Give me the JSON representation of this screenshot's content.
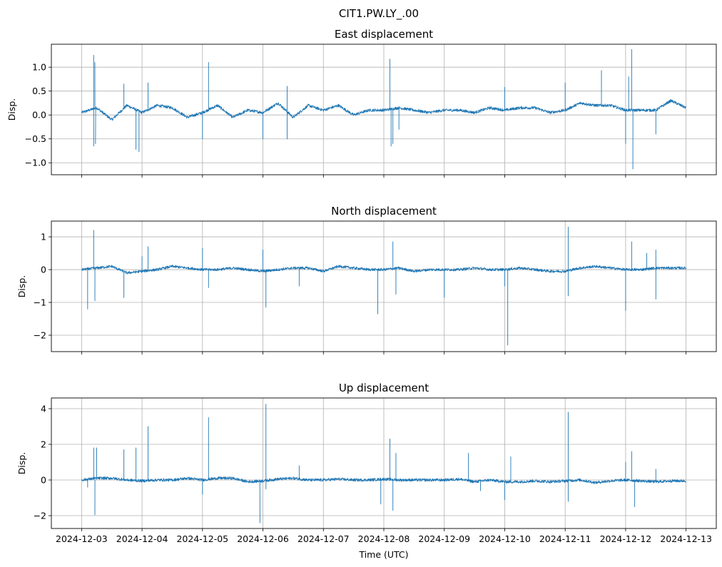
{
  "chart_data": {
    "type": "line",
    "suptitle": "CIT1.PW.LY_.00",
    "xlabel": "Time (UTC)",
    "x_tick_labels": [
      "2024-12-03",
      "2024-12-04",
      "2024-12-05",
      "2024-12-06",
      "2024-12-07",
      "2024-12-08",
      "2024-12-09",
      "2024-12-10",
      "2024-12-11",
      "2024-12-12",
      "2024-12-13"
    ],
    "x_unit": "days since 2024-12-03",
    "xlim": [
      -0.5,
      10.5
    ],
    "line_color": "#1f77b4",
    "grid": true,
    "subplots": [
      {
        "title": "East displacement",
        "ylabel": "Disp.",
        "ylim": [
          -1.25,
          1.48
        ],
        "yticks": [
          -1.0,
          -0.5,
          0.0,
          0.5,
          1.0
        ],
        "ytick_labels": [
          "−1.0",
          "−0.5",
          "0.0",
          "0.5",
          "1.0"
        ],
        "noise": 0.03,
        "baseline_step_days": 0.25,
        "baseline": [
          0.05,
          0.15,
          -0.1,
          0.2,
          0.05,
          0.2,
          0.15,
          -0.05,
          0.05,
          0.2,
          -0.05,
          0.1,
          0.05,
          0.25,
          -0.05,
          0.2,
          0.1,
          0.2,
          0.0,
          0.1,
          0.1,
          0.15,
          0.1,
          0.05,
          0.1,
          0.1,
          0.05,
          0.15,
          0.1,
          0.15,
          0.15,
          0.05,
          0.1,
          0.25,
          0.2,
          0.2,
          0.1,
          0.1,
          0.1,
          0.3,
          0.15
        ],
        "spikes": [
          [
            0.2,
            1.25
          ],
          [
            0.2,
            -0.65
          ],
          [
            0.22,
            1.1
          ],
          [
            0.23,
            -0.6
          ],
          [
            0.7,
            0.65
          ],
          [
            0.9,
            -0.72
          ],
          [
            0.95,
            -0.77
          ],
          [
            1.1,
            0.67
          ],
          [
            2.1,
            1.1
          ],
          [
            2.0,
            -0.5
          ],
          [
            3.0,
            -0.5
          ],
          [
            3.4,
            0.6
          ],
          [
            3.4,
            -0.5
          ],
          [
            5.1,
            1.17
          ],
          [
            5.12,
            -0.65
          ],
          [
            5.15,
            -0.6
          ],
          [
            5.25,
            -0.3
          ],
          [
            7.0,
            0.58
          ],
          [
            8.0,
            0.67
          ],
          [
            8.6,
            0.93
          ],
          [
            9.0,
            -0.6
          ],
          [
            9.05,
            0.8
          ],
          [
            9.1,
            1.37
          ],
          [
            9.12,
            -1.13
          ],
          [
            9.5,
            -0.4
          ]
        ]
      },
      {
        "title": "North displacement",
        "ylabel": "Disp.",
        "ylim": [
          -2.5,
          1.48
        ],
        "yticks": [
          -2,
          -1,
          0,
          1
        ],
        "ytick_labels": [
          "−2",
          "−1",
          "0",
          "1"
        ],
        "noise": 0.04,
        "baseline_step_days": 0.25,
        "baseline": [
          0,
          0.05,
          0.1,
          -0.1,
          -0.05,
          0,
          0.1,
          0.05,
          0,
          0,
          0.05,
          0,
          -0.05,
          0,
          0.05,
          0.05,
          -0.05,
          0.1,
          0.05,
          0,
          0,
          0.05,
          -0.05,
          0,
          0,
          0,
          0.05,
          0,
          0,
          0.05,
          0,
          -0.05,
          -0.05,
          0.05,
          0.1,
          0.05,
          0,
          0,
          0.05,
          0.05,
          0.05
        ],
        "spikes": [
          [
            0.1,
            -1.2
          ],
          [
            0.2,
            1.2
          ],
          [
            0.22,
            -0.95
          ],
          [
            0.7,
            -0.85
          ],
          [
            1.0,
            0.4
          ],
          [
            1.1,
            0.7
          ],
          [
            2.0,
            0.65
          ],
          [
            2.1,
            -0.55
          ],
          [
            3.0,
            0.6
          ],
          [
            3.05,
            -1.15
          ],
          [
            3.6,
            -0.5
          ],
          [
            4.9,
            -1.35
          ],
          [
            5.15,
            0.85
          ],
          [
            5.2,
            -0.75
          ],
          [
            6.0,
            -0.85
          ],
          [
            7.0,
            -0.5
          ],
          [
            7.05,
            -2.3
          ],
          [
            8.05,
            1.3
          ],
          [
            8.05,
            -0.8
          ],
          [
            9.0,
            -1.25
          ],
          [
            9.1,
            0.85
          ],
          [
            9.35,
            0.5
          ],
          [
            9.5,
            0.6
          ],
          [
            9.5,
            -0.9
          ]
        ]
      },
      {
        "title": "Up displacement",
        "ylabel": "Disp.",
        "ylim": [
          -2.72,
          4.6
        ],
        "yticks": [
          -2,
          0,
          2,
          4
        ],
        "ytick_labels": [
          "−2",
          "0",
          "2",
          "4"
        ],
        "noise": 0.08,
        "baseline_step_days": 0.25,
        "baseline": [
          0,
          0.1,
          0.1,
          0,
          -0.05,
          0,
          0,
          0.1,
          0,
          0.1,
          0.1,
          -0.1,
          -0.05,
          0.05,
          0.1,
          0,
          0,
          0.05,
          0,
          0,
          0.05,
          0,
          0,
          0,
          0,
          0.05,
          -0.1,
          0,
          -0.1,
          -0.1,
          -0.05,
          -0.1,
          -0.05,
          0,
          -0.15,
          -0.05,
          0,
          -0.05,
          -0.1,
          -0.05,
          -0.05
        ],
        "spikes": [
          [
            0.1,
            -0.4
          ],
          [
            0.2,
            1.8
          ],
          [
            0.22,
            -1.95
          ],
          [
            0.25,
            1.8
          ],
          [
            0.7,
            1.7
          ],
          [
            0.9,
            1.8
          ],
          [
            1.1,
            3.0
          ],
          [
            2.0,
            -0.8
          ],
          [
            2.1,
            3.5
          ],
          [
            2.95,
            -2.4
          ],
          [
            3.05,
            4.25
          ],
          [
            3.05,
            -0.5
          ],
          [
            3.6,
            0.8
          ],
          [
            4.95,
            -1.35
          ],
          [
            5.1,
            2.3
          ],
          [
            5.15,
            -1.7
          ],
          [
            5.2,
            1.5
          ],
          [
            6.4,
            1.5
          ],
          [
            6.6,
            -0.6
          ],
          [
            7.0,
            -1.1
          ],
          [
            7.1,
            1.3
          ],
          [
            8.05,
            3.8
          ],
          [
            8.05,
            -1.2
          ],
          [
            9.0,
            1.0
          ],
          [
            9.1,
            1.6
          ],
          [
            9.15,
            -1.5
          ],
          [
            9.5,
            0.6
          ]
        ]
      }
    ]
  }
}
